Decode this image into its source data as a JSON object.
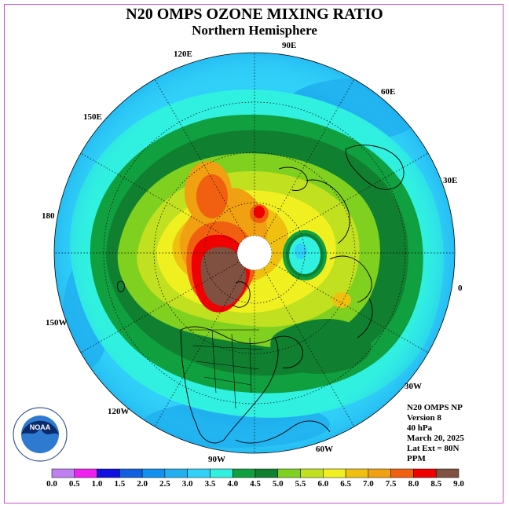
{
  "title": "N20 OMPS OZONE MIXING RATIO",
  "subtitle": "Northern Hemisphere",
  "longitude_labels": [
    "90E",
    "60E",
    "30E",
    "0",
    "30W",
    "60W",
    "90W",
    "120W",
    "150W",
    "180",
    "150E",
    "120E"
  ],
  "info": {
    "product": "N20 OMPS NP",
    "version": "Version 8",
    "level": "40 hPa",
    "date": "March 20, 2025",
    "lat_ext": "Lat Ext = 80N",
    "units": "PPM"
  },
  "logo": {
    "text": "NOAA",
    "ring_text": "NATIONAL OCEANIC AND ATMOSPHERIC ADMINISTRATION · U.S. DEPARTMENT OF COMMERCE"
  },
  "colorbar": {
    "ticks": [
      "0.0",
      "0.5",
      "1.0",
      "1.5",
      "2.0",
      "2.5",
      "3.0",
      "3.5",
      "4.0",
      "4.5",
      "5.0",
      "5.5",
      "6.0",
      "6.5",
      "7.0",
      "7.5",
      "8.0",
      "8.5",
      "9.0"
    ],
    "colors": [
      "#c080f0",
      "#e0a0f0",
      "#f020f0",
      "#1010e0",
      "#1060e0",
      "#1090f0",
      "#20b0f0",
      "#30d0f8",
      "#30f0e0",
      "#10a040",
      "#108030",
      "#80d020",
      "#c0e020",
      "#f0f020",
      "#f0c010",
      "#f0a010",
      "#f06010",
      "#f00000",
      "#805040"
    ]
  }
}
